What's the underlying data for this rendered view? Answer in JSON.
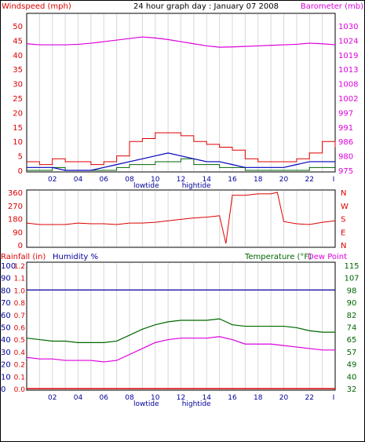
{
  "header": {
    "left_label": "Windspeed (mph)",
    "title": "24 hour graph day : January 07 2008",
    "right_label": "Barometer (mb)"
  },
  "colors": {
    "wind": "#dd0000",
    "gust": "#006600",
    "avg_wind": "#0000bb",
    "barometer": "#dd00dd",
    "humidity": "#000099",
    "temperature": "#006600",
    "dew_point": "#dd00dd",
    "rain": "#dd0000",
    "grid": "#d8d8d8"
  },
  "x_ticks": [
    "02",
    "04",
    "06",
    "08",
    "10",
    "12",
    "14",
    "16",
    "18",
    "20",
    "22",
    "I"
  ],
  "tide": {
    "low": "lowtide",
    "high": "hightide"
  },
  "chart_data": [
    {
      "type": "line",
      "title": "24 hour graph day : January 07 2008",
      "ylabel": "Windspeed (mph)",
      "y2label": "Barometer (mb)",
      "ylim": [
        0,
        50
      ],
      "y_ticks": [
        "0",
        "5",
        "10",
        "15",
        "20",
        "25",
        "30",
        "35",
        "40",
        "45",
        "50"
      ],
      "y2lim": [
        975,
        1030
      ],
      "y2_ticks": [
        "975",
        "980",
        "986",
        "991",
        "997",
        "1002",
        "1008",
        "1013",
        "1019",
        "1024",
        "1030"
      ],
      "x": [
        0,
        1,
        2,
        3,
        4,
        5,
        6,
        7,
        8,
        9,
        10,
        11,
        12,
        13,
        14,
        15,
        16,
        17,
        18,
        19,
        20,
        21,
        22,
        23,
        24
      ],
      "series": [
        {
          "name": "Windspeed (mph)",
          "values": [
            3,
            2,
            4,
            3,
            3,
            2,
            3,
            5,
            10,
            11,
            13,
            13,
            12,
            10,
            9,
            8,
            7,
            4,
            3,
            3,
            3,
            4,
            6,
            10,
            8
          ]
        },
        {
          "name": "Barometer (mb)",
          "axis": "right",
          "values": [
            1023.2,
            1022.8,
            1022.8,
            1022.8,
            1023.0,
            1023.4,
            1024.0,
            1024.6,
            1025.2,
            1025.8,
            1025.4,
            1024.8,
            1024.0,
            1023.2,
            1022.4,
            1021.9,
            1022.0,
            1022.2,
            1022.4,
            1022.6,
            1022.8,
            1023.0,
            1023.4,
            1023.2,
            1022.8
          ]
        },
        {
          "values": [
            1,
            1,
            1,
            0,
            0,
            0,
            1,
            2,
            3,
            4,
            5,
            6,
            5,
            4,
            3,
            3,
            2,
            1,
            1,
            1,
            1,
            2,
            3,
            3,
            3
          ]
        },
        {
          "values": [
            0,
            0,
            1,
            0,
            0,
            0,
            0,
            1,
            2,
            2,
            3,
            3,
            4,
            2,
            2,
            1,
            1,
            0,
            0,
            0,
            0,
            0,
            1,
            1,
            1
          ]
        }
      ]
    },
    {
      "type": "line",
      "ylim": [
        0,
        360
      ],
      "y_ticks": [
        "0",
        "90",
        "180",
        "270",
        "360"
      ],
      "y2_ticks": [
        "N",
        "E",
        "S",
        "W",
        "N"
      ],
      "x": [
        0,
        1,
        2,
        3,
        4,
        5,
        6,
        7,
        8,
        9,
        10,
        11,
        12,
        13,
        14,
        15,
        15.5,
        16,
        17,
        18,
        19,
        19.5,
        20,
        21,
        22,
        23,
        24
      ],
      "values": [
        150,
        140,
        140,
        140,
        150,
        145,
        145,
        140,
        150,
        150,
        155,
        165,
        175,
        185,
        190,
        200,
        10,
        340,
        340,
        350,
        350,
        360,
        160,
        145,
        140,
        155,
        165
      ]
    },
    {
      "type": "line",
      "left_label": "Rainfall (in)",
      "humidity_label": "Humidity %",
      "right_label_temp": "Temperature (°F)",
      "right_label_dew": "Dew Point",
      "humidity_ticks": [
        "0",
        "10",
        "20",
        "30",
        "40",
        "50",
        "60",
        "70",
        "80",
        "90",
        "100"
      ],
      "rain_ticks": [
        "0.0",
        "0.1",
        "0.2",
        "0.4",
        "0.5",
        "0.6",
        "0.7",
        "0.8",
        "1.0",
        "1.1",
        "1.2"
      ],
      "ylim": [
        0,
        100
      ],
      "y2lim": [
        32,
        115
      ],
      "y2_ticks": [
        "32",
        "40",
        "49",
        "57",
        "65",
        "74",
        "82",
        "90",
        "98",
        "107",
        "115"
      ],
      "x": [
        0,
        1,
        2,
        3,
        4,
        5,
        6,
        7,
        8,
        9,
        10,
        11,
        12,
        13,
        14,
        15,
        16,
        17,
        18,
        19,
        20,
        21,
        22,
        23,
        24
      ],
      "series": [
        {
          "name": "Humidity %",
          "values": [
            80,
            80,
            80,
            80,
            80,
            80,
            80,
            80,
            80,
            80,
            80,
            80,
            80,
            80,
            80,
            80,
            80,
            80,
            80,
            80,
            80,
            80,
            80,
            80,
            80
          ]
        },
        {
          "name": "Temperature (°F)",
          "axis": "right",
          "values": [
            66,
            65,
            64,
            64,
            63,
            63,
            63,
            64,
            68,
            72,
            75,
            77,
            78,
            78,
            78,
            79,
            75,
            74,
            74,
            74,
            74,
            73,
            71,
            70,
            70
          ]
        },
        {
          "name": "Dew Point",
          "axis": "right",
          "values": [
            53,
            52,
            52,
            51,
            51,
            51,
            50,
            51,
            55,
            59,
            63,
            65,
            66,
            66,
            66,
            67,
            65,
            62,
            62,
            62,
            61,
            60,
            59,
            58,
            58
          ]
        },
        {
          "name": "Rainfall (in)",
          "values": [
            0,
            0,
            0,
            0,
            0,
            0,
            0,
            0,
            0,
            0,
            0,
            0,
            0,
            0,
            0,
            0,
            0,
            0,
            0,
            0,
            0,
            0,
            0,
            0,
            0
          ]
        }
      ]
    }
  ]
}
